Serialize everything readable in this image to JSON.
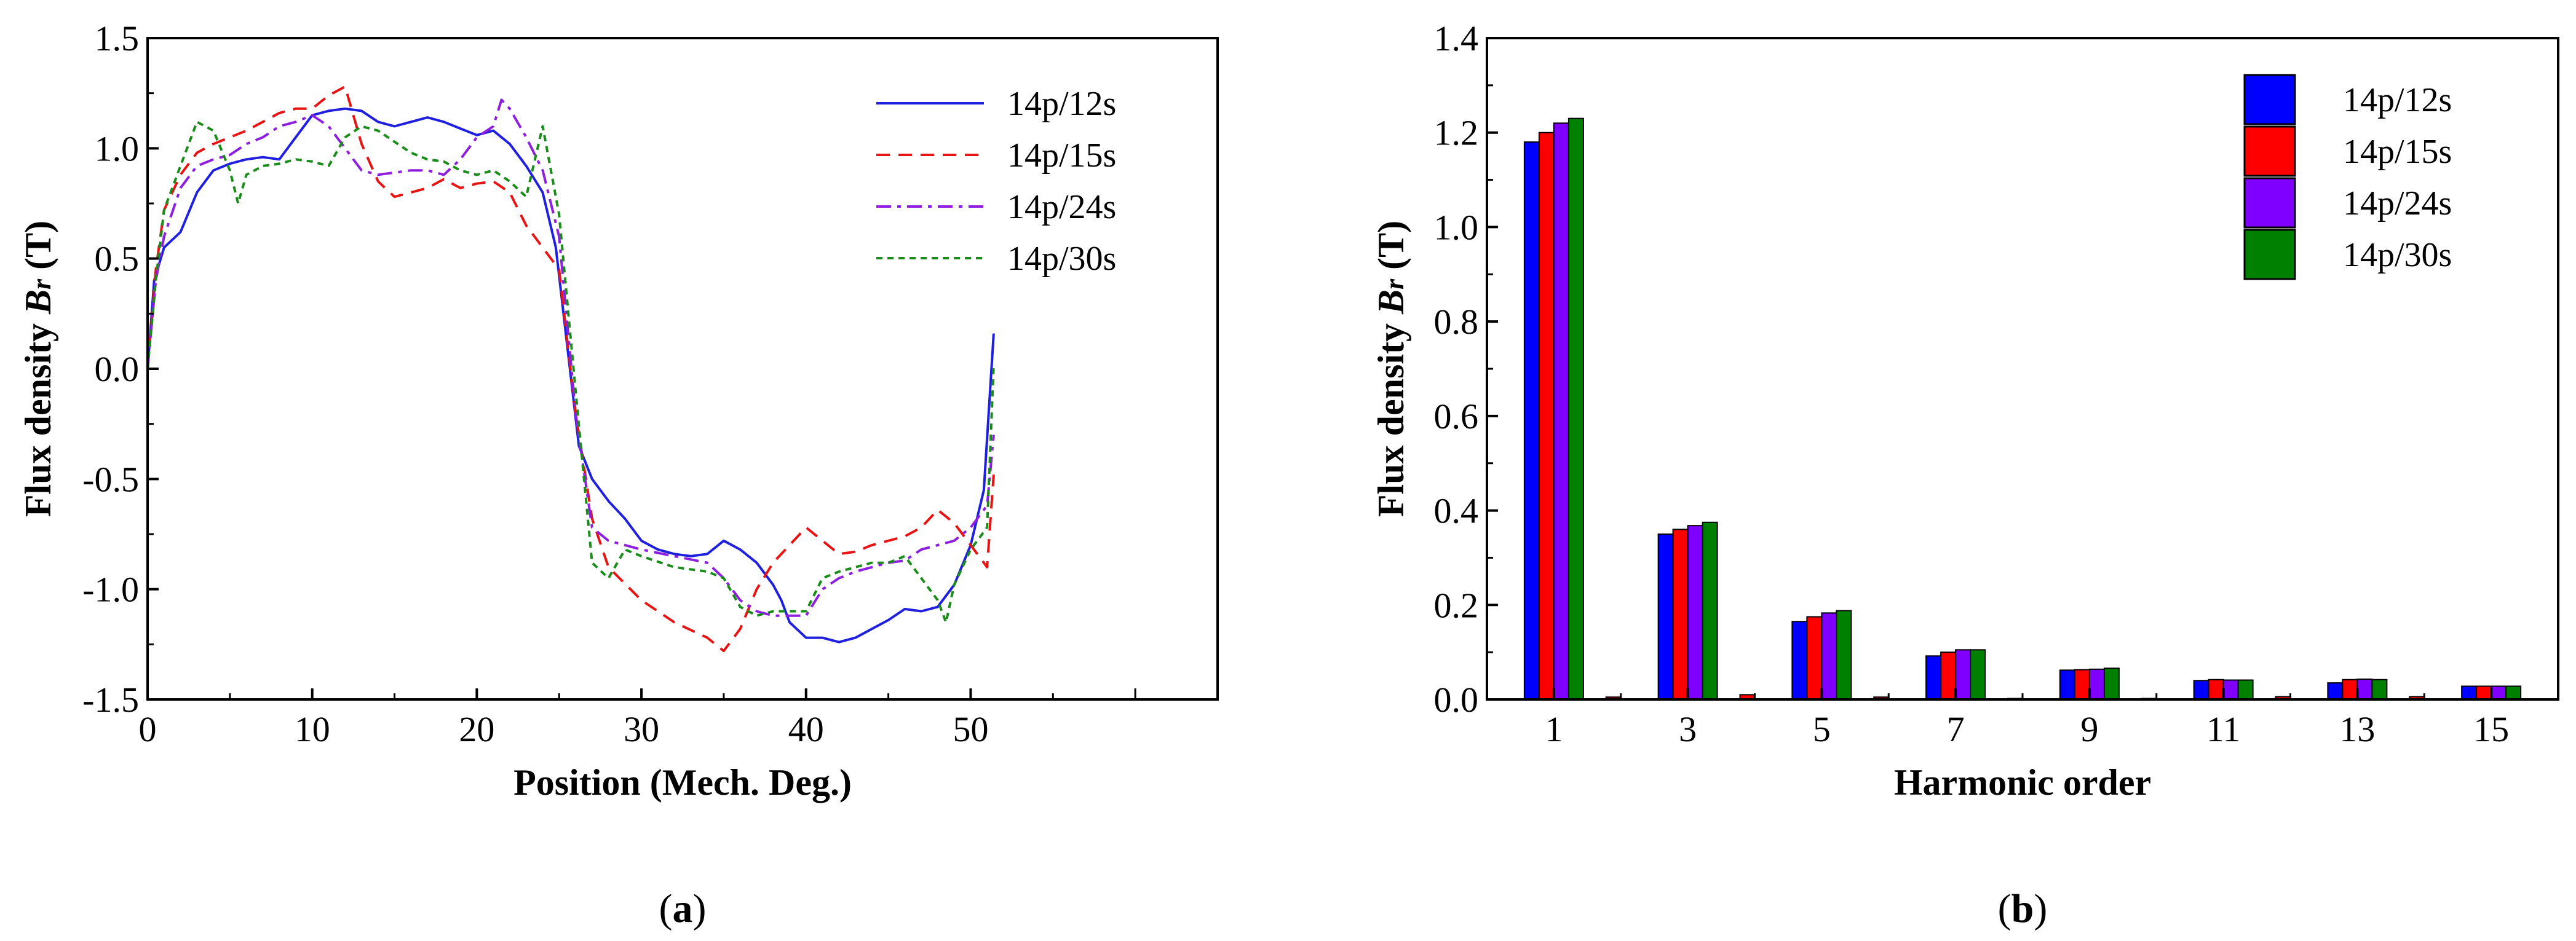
{
  "chart_data": [
    {
      "panel": "a",
      "type": "line",
      "panel_label": "(a)",
      "panel_letter": "a",
      "xlabel": "Position (Mech. Deg.)",
      "ylabel_prefix": "Flux density ",
      "ylabel_symbol": "B",
      "ylabel_sub": "r",
      "ylabel_suffix": " (T)",
      "xlim": [
        0,
        65
      ],
      "ylim": [
        -1.5,
        1.5
      ],
      "xticks": [
        0,
        10,
        20,
        30,
        40,
        50
      ],
      "yticks": [
        -1.5,
        -1.0,
        -0.5,
        0.0,
        0.5,
        1.0,
        1.5
      ],
      "xtick_labels": [
        "0",
        "10",
        "20",
        "30",
        "40",
        "50"
      ],
      "ytick_labels": [
        "-1.5",
        "-1.0",
        "-0.5",
        "0.0",
        "0.5",
        "1.0",
        "1.5"
      ],
      "legend_position": "top-right",
      "series": [
        {
          "name": "14p/12s",
          "color": "#1f1fe0",
          "dash": "solid",
          "x": [
            0,
            0.4,
            1,
            2,
            3,
            4,
            5,
            6,
            7,
            8,
            9,
            10,
            11,
            12,
            13,
            14,
            15,
            16,
            17,
            18,
            19,
            20,
            21,
            22,
            23,
            24,
            24.8,
            25.5,
            26.2,
            27,
            28,
            29,
            30,
            31,
            32,
            33,
            34,
            35,
            36,
            37,
            38,
            38.5,
            39,
            40,
            41,
            42,
            43,
            44,
            45,
            46,
            47,
            48,
            49,
            50,
            50.8,
            51.4
          ],
          "y": [
            0,
            0.4,
            0.55,
            0.62,
            0.8,
            0.9,
            0.93,
            0.95,
            0.96,
            0.95,
            1.05,
            1.15,
            1.17,
            1.18,
            1.17,
            1.12,
            1.1,
            1.12,
            1.14,
            1.12,
            1.09,
            1.06,
            1.08,
            1.02,
            0.92,
            0.8,
            0.55,
            0.1,
            -0.35,
            -0.5,
            -0.6,
            -0.68,
            -0.78,
            -0.82,
            -0.84,
            -0.85,
            -0.84,
            -0.78,
            -0.82,
            -0.88,
            -0.98,
            -1.05,
            -1.15,
            -1.22,
            -1.22,
            -1.24,
            -1.22,
            -1.18,
            -1.14,
            -1.09,
            -1.1,
            -1.08,
            -0.98,
            -0.8,
            -0.55,
            0.16
          ]
        },
        {
          "name": "14p/15s",
          "color": "#e81414",
          "dash": "long",
          "x": [
            0,
            0.5,
            1,
            2,
            3,
            4,
            5,
            6,
            7,
            8,
            9,
            10,
            11,
            12,
            12.5,
            13,
            14,
            15,
            16,
            17,
            18,
            19,
            20,
            21,
            22,
            23,
            24,
            25,
            26,
            27,
            28,
            30,
            32,
            34,
            35,
            36,
            37,
            38,
            39,
            40,
            41,
            42,
            43,
            44,
            45,
            46,
            47,
            48,
            49,
            50,
            51,
            51.4
          ],
          "y": [
            0,
            0.45,
            0.72,
            0.88,
            0.98,
            1.02,
            1.05,
            1.08,
            1.12,
            1.16,
            1.18,
            1.18,
            1.24,
            1.28,
            1.15,
            1.02,
            0.85,
            0.78,
            0.8,
            0.82,
            0.86,
            0.82,
            0.84,
            0.85,
            0.8,
            0.65,
            0.55,
            0.45,
            -0.2,
            -0.68,
            -0.9,
            -1.05,
            -1.15,
            -1.22,
            -1.28,
            -1.18,
            -1.0,
            -0.88,
            -0.8,
            -0.72,
            -0.78,
            -0.84,
            -0.83,
            -0.8,
            -0.78,
            -0.76,
            -0.72,
            -0.64,
            -0.7,
            -0.8,
            -0.9,
            -0.48
          ]
        },
        {
          "name": "14p/24s",
          "color": "#8e1fe0",
          "dash": "dashdot",
          "x": [
            0,
            0.5,
            1,
            2,
            3,
            4,
            5,
            6,
            7,
            8,
            9,
            10,
            11,
            12,
            13,
            14,
            15,
            16,
            17,
            18,
            19,
            20,
            21,
            21.5,
            22,
            23,
            24,
            25,
            26,
            27,
            28,
            30,
            32,
            34,
            35,
            36,
            37,
            38,
            39,
            40,
            41,
            42,
            43,
            44,
            45,
            46,
            47,
            48,
            49,
            50,
            51,
            51.4
          ],
          "y": [
            0,
            0.4,
            0.6,
            0.82,
            0.92,
            0.95,
            0.97,
            1.02,
            1.05,
            1.1,
            1.12,
            1.15,
            1.1,
            1.0,
            0.9,
            0.88,
            0.89,
            0.9,
            0.9,
            0.88,
            0.95,
            1.05,
            1.1,
            1.22,
            1.18,
            1.05,
            0.9,
            0.6,
            -0.2,
            -0.72,
            -0.78,
            -0.82,
            -0.85,
            -0.88,
            -0.95,
            -1.05,
            -1.1,
            -1.12,
            -1.12,
            -1.12,
            -1.0,
            -0.95,
            -0.92,
            -0.9,
            -0.88,
            -0.87,
            -0.82,
            -0.8,
            -0.78,
            -0.72,
            -0.62,
            -0.3
          ]
        },
        {
          "name": "14p/30s",
          "color": "#1a8c1a",
          "dash": "short",
          "x": [
            0,
            0.5,
            1,
            2,
            3,
            4,
            5,
            5.5,
            6,
            7,
            8,
            9,
            10,
            11,
            12,
            13,
            14,
            15,
            16,
            17,
            18,
            19,
            20,
            21,
            22,
            23,
            24,
            25,
            26,
            27,
            28,
            29,
            30,
            32,
            34,
            35,
            36,
            37,
            38,
            39,
            40,
            41,
            42,
            43,
            44,
            45,
            46,
            47,
            48,
            48.5,
            49,
            50,
            51,
            51.4
          ],
          "y": [
            0,
            0.4,
            0.72,
            0.92,
            1.12,
            1.08,
            0.9,
            0.75,
            0.88,
            0.92,
            0.93,
            0.95,
            0.94,
            0.92,
            1.05,
            1.1,
            1.08,
            1.03,
            0.98,
            0.95,
            0.94,
            0.9,
            0.88,
            0.9,
            0.85,
            0.78,
            1.1,
            0.7,
            -0.1,
            -0.88,
            -0.95,
            -0.82,
            -0.85,
            -0.9,
            -0.92,
            -0.95,
            -1.08,
            -1.12,
            -1.1,
            -1.1,
            -1.1,
            -0.95,
            -0.92,
            -0.9,
            -0.88,
            -0.88,
            -0.85,
            -0.95,
            -1.05,
            -1.15,
            -0.98,
            -0.82,
            -0.72,
            0.02
          ]
        }
      ]
    },
    {
      "panel": "b",
      "type": "bar",
      "panel_label": "(b)",
      "panel_letter": "b",
      "xlabel": "Harmonic order",
      "ylabel_prefix": "Flux density ",
      "ylabel_symbol": "B",
      "ylabel_sub": "r",
      "ylabel_suffix": " (T)",
      "categories": [
        "1",
        "2",
        "3",
        "4",
        "5",
        "6",
        "7",
        "8",
        "9",
        "10",
        "11",
        "12",
        "13",
        "14",
        "15"
      ],
      "xtick_labels": [
        "1",
        "3",
        "5",
        "7",
        "9",
        "11",
        "13",
        "15"
      ],
      "ylim": [
        0,
        1.4
      ],
      "yticks": [
        0.0,
        0.2,
        0.4,
        0.6,
        0.8,
        1.0,
        1.2,
        1.4
      ],
      "ytick_labels": [
        "0.0",
        "0.2",
        "0.4",
        "0.6",
        "0.8",
        "1.0",
        "1.2",
        "1.4"
      ],
      "legend_position": "top-right",
      "series": [
        {
          "name": "14p/12s",
          "color": "#0000ff",
          "values": [
            1.18,
            0.0,
            0.35,
            0.0,
            0.165,
            0.0,
            0.092,
            0.0,
            0.062,
            0.0,
            0.04,
            0.0,
            0.035,
            0.0,
            0.028
          ]
        },
        {
          "name": "14p/15s",
          "color": "#ff0000",
          "values": [
            1.2,
            0.005,
            0.36,
            0.01,
            0.175,
            0.005,
            0.1,
            0.002,
            0.063,
            0.002,
            0.042,
            0.006,
            0.042,
            0.006,
            0.028
          ]
        },
        {
          "name": "14p/24s",
          "color": "#8000ff",
          "values": [
            1.22,
            0.0,
            0.368,
            0.0,
            0.183,
            0.0,
            0.105,
            0.0,
            0.064,
            0.0,
            0.041,
            0.0,
            0.043,
            0.0,
            0.028
          ]
        },
        {
          "name": "14p/30s",
          "color": "#008000",
          "values": [
            1.23,
            0.0,
            0.375,
            0.0,
            0.188,
            0.0,
            0.105,
            0.0,
            0.066,
            0.0,
            0.041,
            0.0,
            0.042,
            0.0,
            0.028
          ]
        }
      ]
    }
  ]
}
